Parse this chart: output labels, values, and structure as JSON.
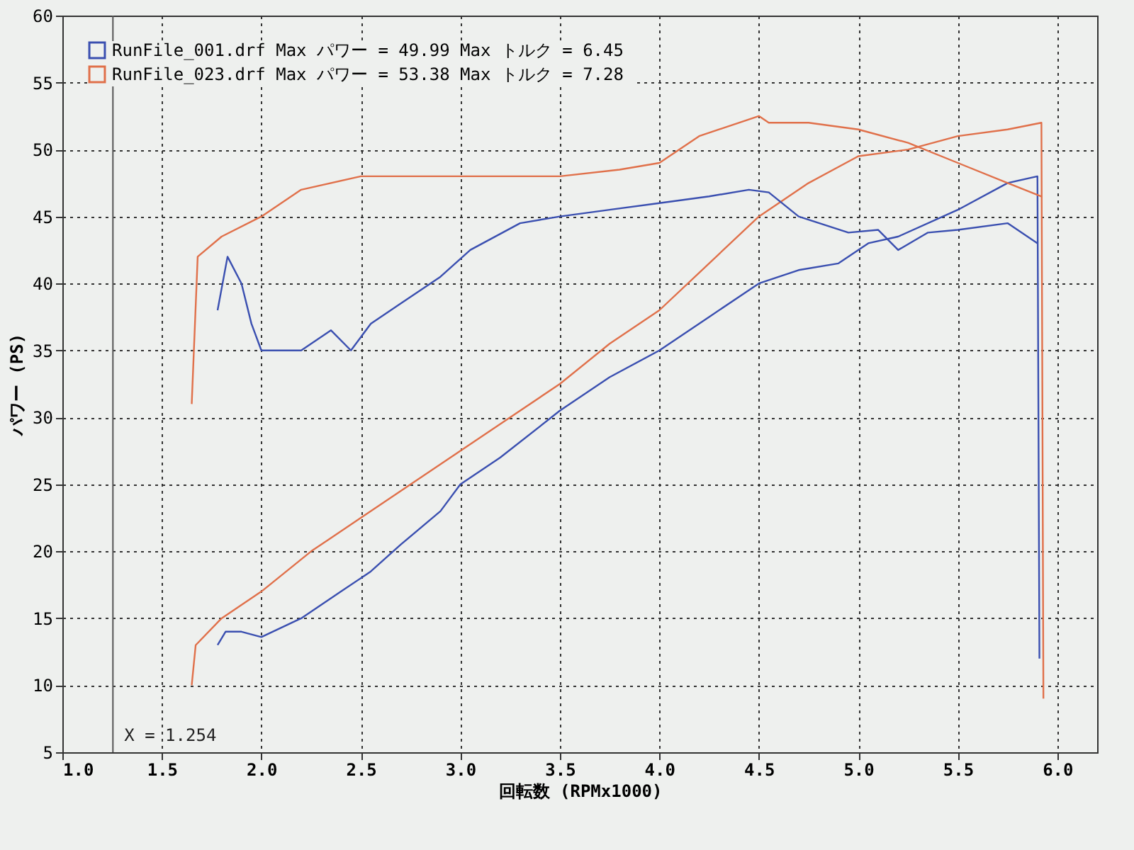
{
  "chart_data": {
    "type": "line",
    "xlabel": "回転数 (RPMx1000)",
    "ylabel": "パワー (PS)",
    "xlim": [
      1.0,
      6.2
    ],
    "xticks": [
      {
        "value": 1.0,
        "label": "1.0"
      },
      1.5,
      {
        "value": 2.0,
        "label": "2.0"
      },
      2.5,
      {
        "value": 3.0,
        "label": "3.0"
      },
      3.5,
      {
        "value": 4.0,
        "label": "4.0"
      },
      4.5,
      {
        "value": 5.0,
        "label": "5.0"
      },
      5.5,
      {
        "value": 6.0,
        "label": "6.0"
      }
    ],
    "ylim": [
      5,
      60
    ],
    "yticks": [
      5,
      10,
      15,
      20,
      25,
      30,
      35,
      40,
      45,
      50,
      55,
      60
    ],
    "grid": true,
    "legend": "top left",
    "line_style": "solid",
    "series": [
      {
        "name": "RunFile_001.drf Max パワー = 49.99  Max トルク = 6.45",
        "color": "#3a4fb0",
        "x": [
          1.78,
          1.82,
          1.9,
          2.0,
          2.2,
          2.4,
          2.55,
          2.7,
          2.9,
          3.0,
          3.2,
          3.5,
          3.75,
          4.0,
          4.25,
          4.5,
          4.7,
          4.9,
          5.05,
          5.2,
          5.5,
          5.75,
          5.9,
          5.91
        ],
        "values": [
          13,
          14,
          14,
          13.6,
          15,
          17,
          18.5,
          20.5,
          23,
          25,
          27,
          30.5,
          33,
          35,
          37.5,
          40,
          41,
          41.5,
          43,
          43.5,
          45.5,
          47.5,
          48,
          12
        ]
      },
      {
        "name": "RunFile_023.drf Max パワー = 53.38  Max トルク = 7.28",
        "color": "#e0704a",
        "x": [
          1.65,
          1.67,
          1.8,
          2.0,
          2.25,
          2.5,
          2.75,
          3.0,
          3.25,
          3.5,
          3.75,
          4.0,
          4.25,
          4.5,
          4.75,
          5.0,
          5.25,
          5.5,
          5.75,
          5.92,
          5.93
        ],
        "values": [
          10,
          13,
          15,
          17,
          20,
          22.5,
          25,
          27.5,
          30,
          32.5,
          35.5,
          38,
          41.5,
          45,
          47.5,
          49.5,
          50,
          51,
          51.5,
          52,
          9
        ]
      },
      {
        "color": "#3a4fb0",
        "x": [
          1.78,
          1.83,
          1.9,
          1.95,
          2.0,
          2.2,
          2.35,
          2.45,
          2.55,
          2.7,
          2.9,
          3.05,
          3.3,
          3.5,
          3.75,
          4.0,
          4.25,
          4.45,
          4.55,
          4.7,
          4.95,
          5.1,
          5.2,
          5.35,
          5.5,
          5.75,
          5.9
        ],
        "values": [
          38,
          42,
          40,
          37,
          35,
          35,
          36.5,
          35,
          37,
          38.5,
          40.5,
          42.5,
          44.5,
          45,
          45.5,
          46,
          46.5,
          47,
          46.8,
          45,
          43.8,
          44,
          42.5,
          43.8,
          44,
          44.5,
          43
        ]
      },
      {
        "color": "#e0704a",
        "x": [
          1.65,
          1.68,
          1.8,
          2.0,
          2.2,
          2.5,
          3.0,
          3.5,
          3.8,
          4.0,
          4.2,
          4.5,
          4.55,
          4.75,
          5.0,
          5.25,
          5.5,
          5.75,
          5.92
        ],
        "values": [
          31,
          42,
          43.5,
          45,
          47,
          48,
          48,
          48,
          48.5,
          49,
          51,
          52.5,
          52,
          52,
          51.5,
          50.5,
          49,
          47.5,
          46.5
        ]
      }
    ],
    "ref_lines": [
      {
        "axis": "x",
        "value": 1.254,
        "label": "X = 1.254",
        "color": "#555555"
      }
    ]
  }
}
